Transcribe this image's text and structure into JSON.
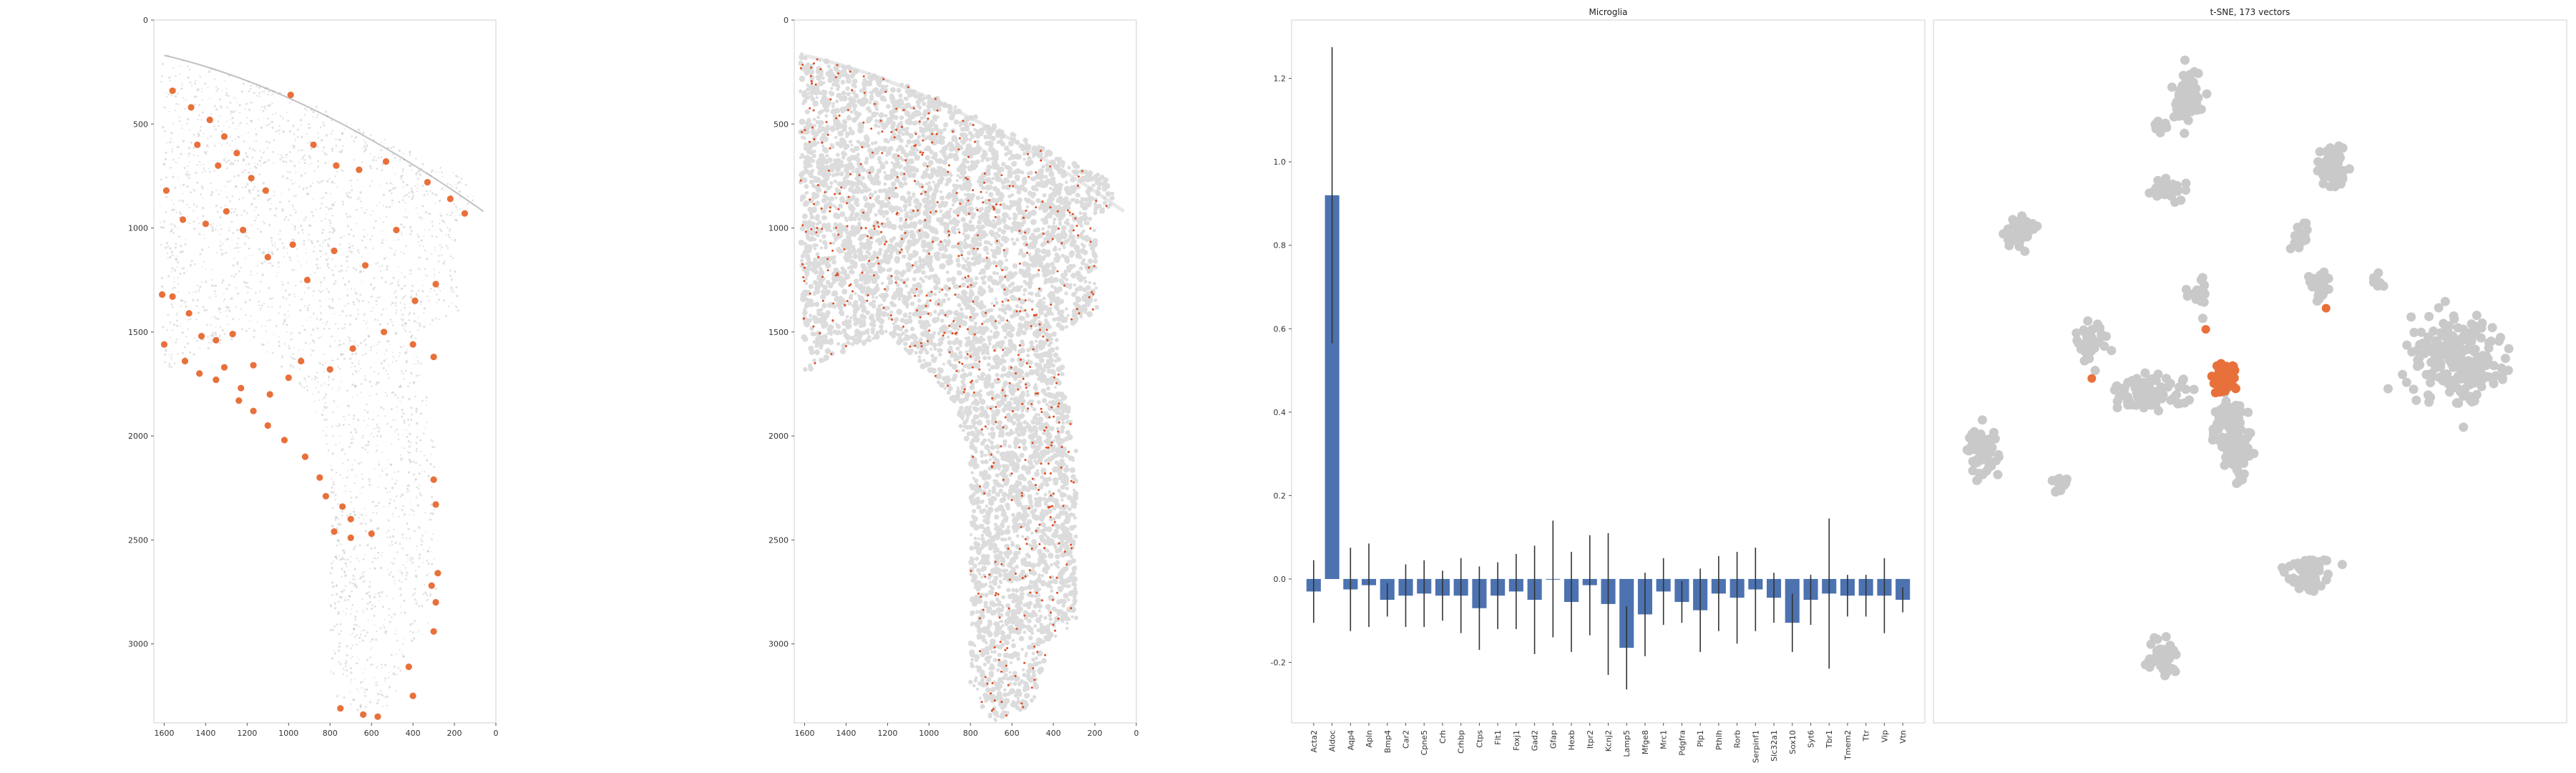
{
  "chart_data": [
    {
      "type": "scatter",
      "panel": "spatial-map-microglia",
      "title": "",
      "xlim": [
        1650,
        0
      ],
      "ylim": [
        3380,
        0
      ],
      "x_ticks": [
        1600,
        1400,
        1200,
        1000,
        800,
        600,
        400,
        200,
        0
      ],
      "y_ticks": [
        0,
        500,
        1000,
        1500,
        2000,
        2500,
        3000
      ],
      "highlight_color": "#e8703a",
      "background_color": "#cfcfcf",
      "highlighted_points": [
        [
          1560,
          340
        ],
        [
          1470,
          420
        ],
        [
          1380,
          480
        ],
        [
          1310,
          560
        ],
        [
          1440,
          600
        ],
        [
          1340,
          700
        ],
        [
          1250,
          640
        ],
        [
          1180,
          760
        ],
        [
          1110,
          820
        ],
        [
          990,
          360
        ],
        [
          880,
          600
        ],
        [
          770,
          700
        ],
        [
          660,
          720
        ],
        [
          530,
          680
        ],
        [
          330,
          780
        ],
        [
          220,
          860
        ],
        [
          150,
          930
        ],
        [
          1590,
          820
        ],
        [
          1510,
          960
        ],
        [
          1400,
          980
        ],
        [
          1300,
          920
        ],
        [
          1220,
          1010
        ],
        [
          1100,
          1140
        ],
        [
          980,
          1080
        ],
        [
          910,
          1250
        ],
        [
          780,
          1110
        ],
        [
          630,
          1180
        ],
        [
          480,
          1010
        ],
        [
          390,
          1350
        ],
        [
          290,
          1270
        ],
        [
          1610,
          1320
        ],
        [
          1560,
          1330
        ],
        [
          1480,
          1410
        ],
        [
          1420,
          1520
        ],
        [
          1350,
          1540
        ],
        [
          1270,
          1510
        ],
        [
          1170,
          1660
        ],
        [
          1230,
          1770
        ],
        [
          1090,
          1800
        ],
        [
          1000,
          1720
        ],
        [
          940,
          1640
        ],
        [
          800,
          1680
        ],
        [
          690,
          1580
        ],
        [
          540,
          1500
        ],
        [
          400,
          1560
        ],
        [
          300,
          1620
        ],
        [
          1600,
          1560
        ],
        [
          1500,
          1640
        ],
        [
          1430,
          1700
        ],
        [
          1350,
          1730
        ],
        [
          1310,
          1670
        ],
        [
          1240,
          1830
        ],
        [
          1170,
          1880
        ],
        [
          1100,
          1950
        ],
        [
          1020,
          2020
        ],
        [
          920,
          2100
        ],
        [
          850,
          2200
        ],
        [
          820,
          2290
        ],
        [
          740,
          2340
        ],
        [
          700,
          2400
        ],
        [
          780,
          2460
        ],
        [
          700,
          2490
        ],
        [
          600,
          2470
        ],
        [
          300,
          2210
        ],
        [
          290,
          2330
        ],
        [
          750,
          3310
        ],
        [
          640,
          3340
        ],
        [
          570,
          3350
        ],
        [
          420,
          3110
        ],
        [
          400,
          3250
        ],
        [
          290,
          2800
        ],
        [
          300,
          2940
        ],
        [
          280,
          2660
        ],
        [
          310,
          2720
        ]
      ]
    },
    {
      "type": "scatter",
      "panel": "spatial-map-all-cells",
      "title": "",
      "xlim": [
        1650,
        0
      ],
      "ylim": [
        3380,
        0
      ],
      "x_ticks": [
        1600,
        1400,
        1200,
        1000,
        800,
        600,
        400,
        200,
        0
      ],
      "y_ticks": [
        0,
        500,
        1000,
        1500,
        2000,
        2500,
        3000
      ]
    },
    {
      "type": "bar",
      "panel": "gene-enrichment",
      "title": "Microglia",
      "ylim": [
        -0.345,
        1.34
      ],
      "y_ticks": [
        -0.2,
        0.0,
        0.2,
        0.4,
        0.6,
        0.8,
        1.0,
        1.2
      ],
      "bar_color": "#4c72b0",
      "categories": [
        "Acta2",
        "Aldoc",
        "Aqp4",
        "Apln",
        "Bmp4",
        "Car2",
        "Cpne5",
        "Crh",
        "Crhbp",
        "Ctps",
        "Flt1",
        "Foxj1",
        "Gad2",
        "Gfap",
        "Hexb",
        "Itpr2",
        "Kcnj2",
        "Lamp5",
        "Mfge8",
        "Mrc1",
        "Pdgfra",
        "Plp1",
        "Pthlh",
        "Rorb",
        "Serpinf1",
        "Slc32a1",
        "Sox10",
        "Syt6",
        "Tbr1",
        "Tmem2",
        "Ttr",
        "Vip",
        "Vtn"
      ],
      "values": [
        -0.03,
        0.92,
        -0.025,
        -0.015,
        -0.05,
        -0.04,
        -0.035,
        -0.04,
        -0.04,
        -0.07,
        -0.04,
        -0.03,
        -0.05,
        0.0,
        -0.055,
        -0.015,
        -0.06,
        -0.165,
        -0.085,
        -0.03,
        -0.055,
        -0.075,
        -0.035,
        -0.045,
        -0.025,
        -0.045,
        -0.105,
        -0.05,
        -0.035,
        -0.04,
        -0.04,
        -0.04,
        -0.05
      ],
      "errors": [
        0.075,
        0.355,
        0.1,
        0.1,
        0.04,
        0.075,
        0.08,
        0.06,
        0.09,
        0.1,
        0.08,
        0.09,
        0.13,
        0.14,
        0.12,
        0.12,
        0.17,
        0.1,
        0.1,
        0.08,
        0.05,
        0.1,
        0.09,
        0.11,
        0.1,
        0.06,
        0.07,
        0.06,
        0.18,
        0.05,
        0.05,
        0.09,
        0.03
      ]
    },
    {
      "type": "scatter",
      "panel": "tsne-embedding",
      "title": "t-SNE, 173 vectors",
      "xlim": [
        0,
        1
      ],
      "ylim": [
        0,
        1
      ],
      "background_color": "#c9c9c9",
      "highlight_color": "#e8703a",
      "clusters": [
        {
          "cx": 0.4,
          "cy": 0.11,
          "rx": 0.03,
          "ry": 0.055,
          "n": 70,
          "highlight": false
        },
        {
          "cx": 0.36,
          "cy": 0.15,
          "rx": 0.015,
          "ry": 0.02,
          "n": 12,
          "highlight": false
        },
        {
          "cx": 0.37,
          "cy": 0.24,
          "rx": 0.04,
          "ry": 0.022,
          "n": 40,
          "highlight": false
        },
        {
          "cx": 0.63,
          "cy": 0.21,
          "rx": 0.03,
          "ry": 0.04,
          "n": 55,
          "highlight": false
        },
        {
          "cx": 0.14,
          "cy": 0.3,
          "rx": 0.032,
          "ry": 0.032,
          "n": 45,
          "highlight": false
        },
        {
          "cx": 0.58,
          "cy": 0.31,
          "rx": 0.018,
          "ry": 0.025,
          "n": 20,
          "highlight": false
        },
        {
          "cx": 0.61,
          "cy": 0.38,
          "rx": 0.022,
          "ry": 0.03,
          "n": 28,
          "highlight": false
        },
        {
          "cx": 0.7,
          "cy": 0.37,
          "rx": 0.015,
          "ry": 0.015,
          "n": 10,
          "highlight": false
        },
        {
          "cx": 0.42,
          "cy": 0.39,
          "rx": 0.022,
          "ry": 0.04,
          "n": 22,
          "highlight": false
        },
        {
          "cx": 0.25,
          "cy": 0.46,
          "rx": 0.04,
          "ry": 0.045,
          "n": 40,
          "highlight": false
        },
        {
          "cx": 0.34,
          "cy": 0.53,
          "rx": 0.08,
          "ry": 0.035,
          "n": 90,
          "highlight": false
        },
        {
          "cx": 0.47,
          "cy": 0.58,
          "rx": 0.05,
          "ry": 0.06,
          "n": 80,
          "highlight": false
        },
        {
          "cx": 0.48,
          "cy": 0.62,
          "rx": 0.03,
          "ry": 0.05,
          "n": 40,
          "highlight": false
        },
        {
          "cx": 0.83,
          "cy": 0.48,
          "rx": 0.1,
          "ry": 0.09,
          "n": 200,
          "highlight": false
        },
        {
          "cx": 0.08,
          "cy": 0.62,
          "rx": 0.035,
          "ry": 0.055,
          "n": 60,
          "highlight": false
        },
        {
          "cx": 0.2,
          "cy": 0.66,
          "rx": 0.02,
          "ry": 0.02,
          "n": 15,
          "highlight": false
        },
        {
          "cx": 0.59,
          "cy": 0.79,
          "rx": 0.055,
          "ry": 0.035,
          "n": 55,
          "highlight": false
        },
        {
          "cx": 0.36,
          "cy": 0.91,
          "rx": 0.035,
          "ry": 0.04,
          "n": 45,
          "highlight": false
        },
        {
          "cx": 0.46,
          "cy": 0.51,
          "rx": 0.028,
          "ry": 0.025,
          "n": 60,
          "highlight": true
        }
      ],
      "highlight_outliers": [
        [
          0.43,
          0.44
        ],
        [
          0.25,
          0.51
        ],
        [
          0.62,
          0.41
        ]
      ]
    }
  ]
}
